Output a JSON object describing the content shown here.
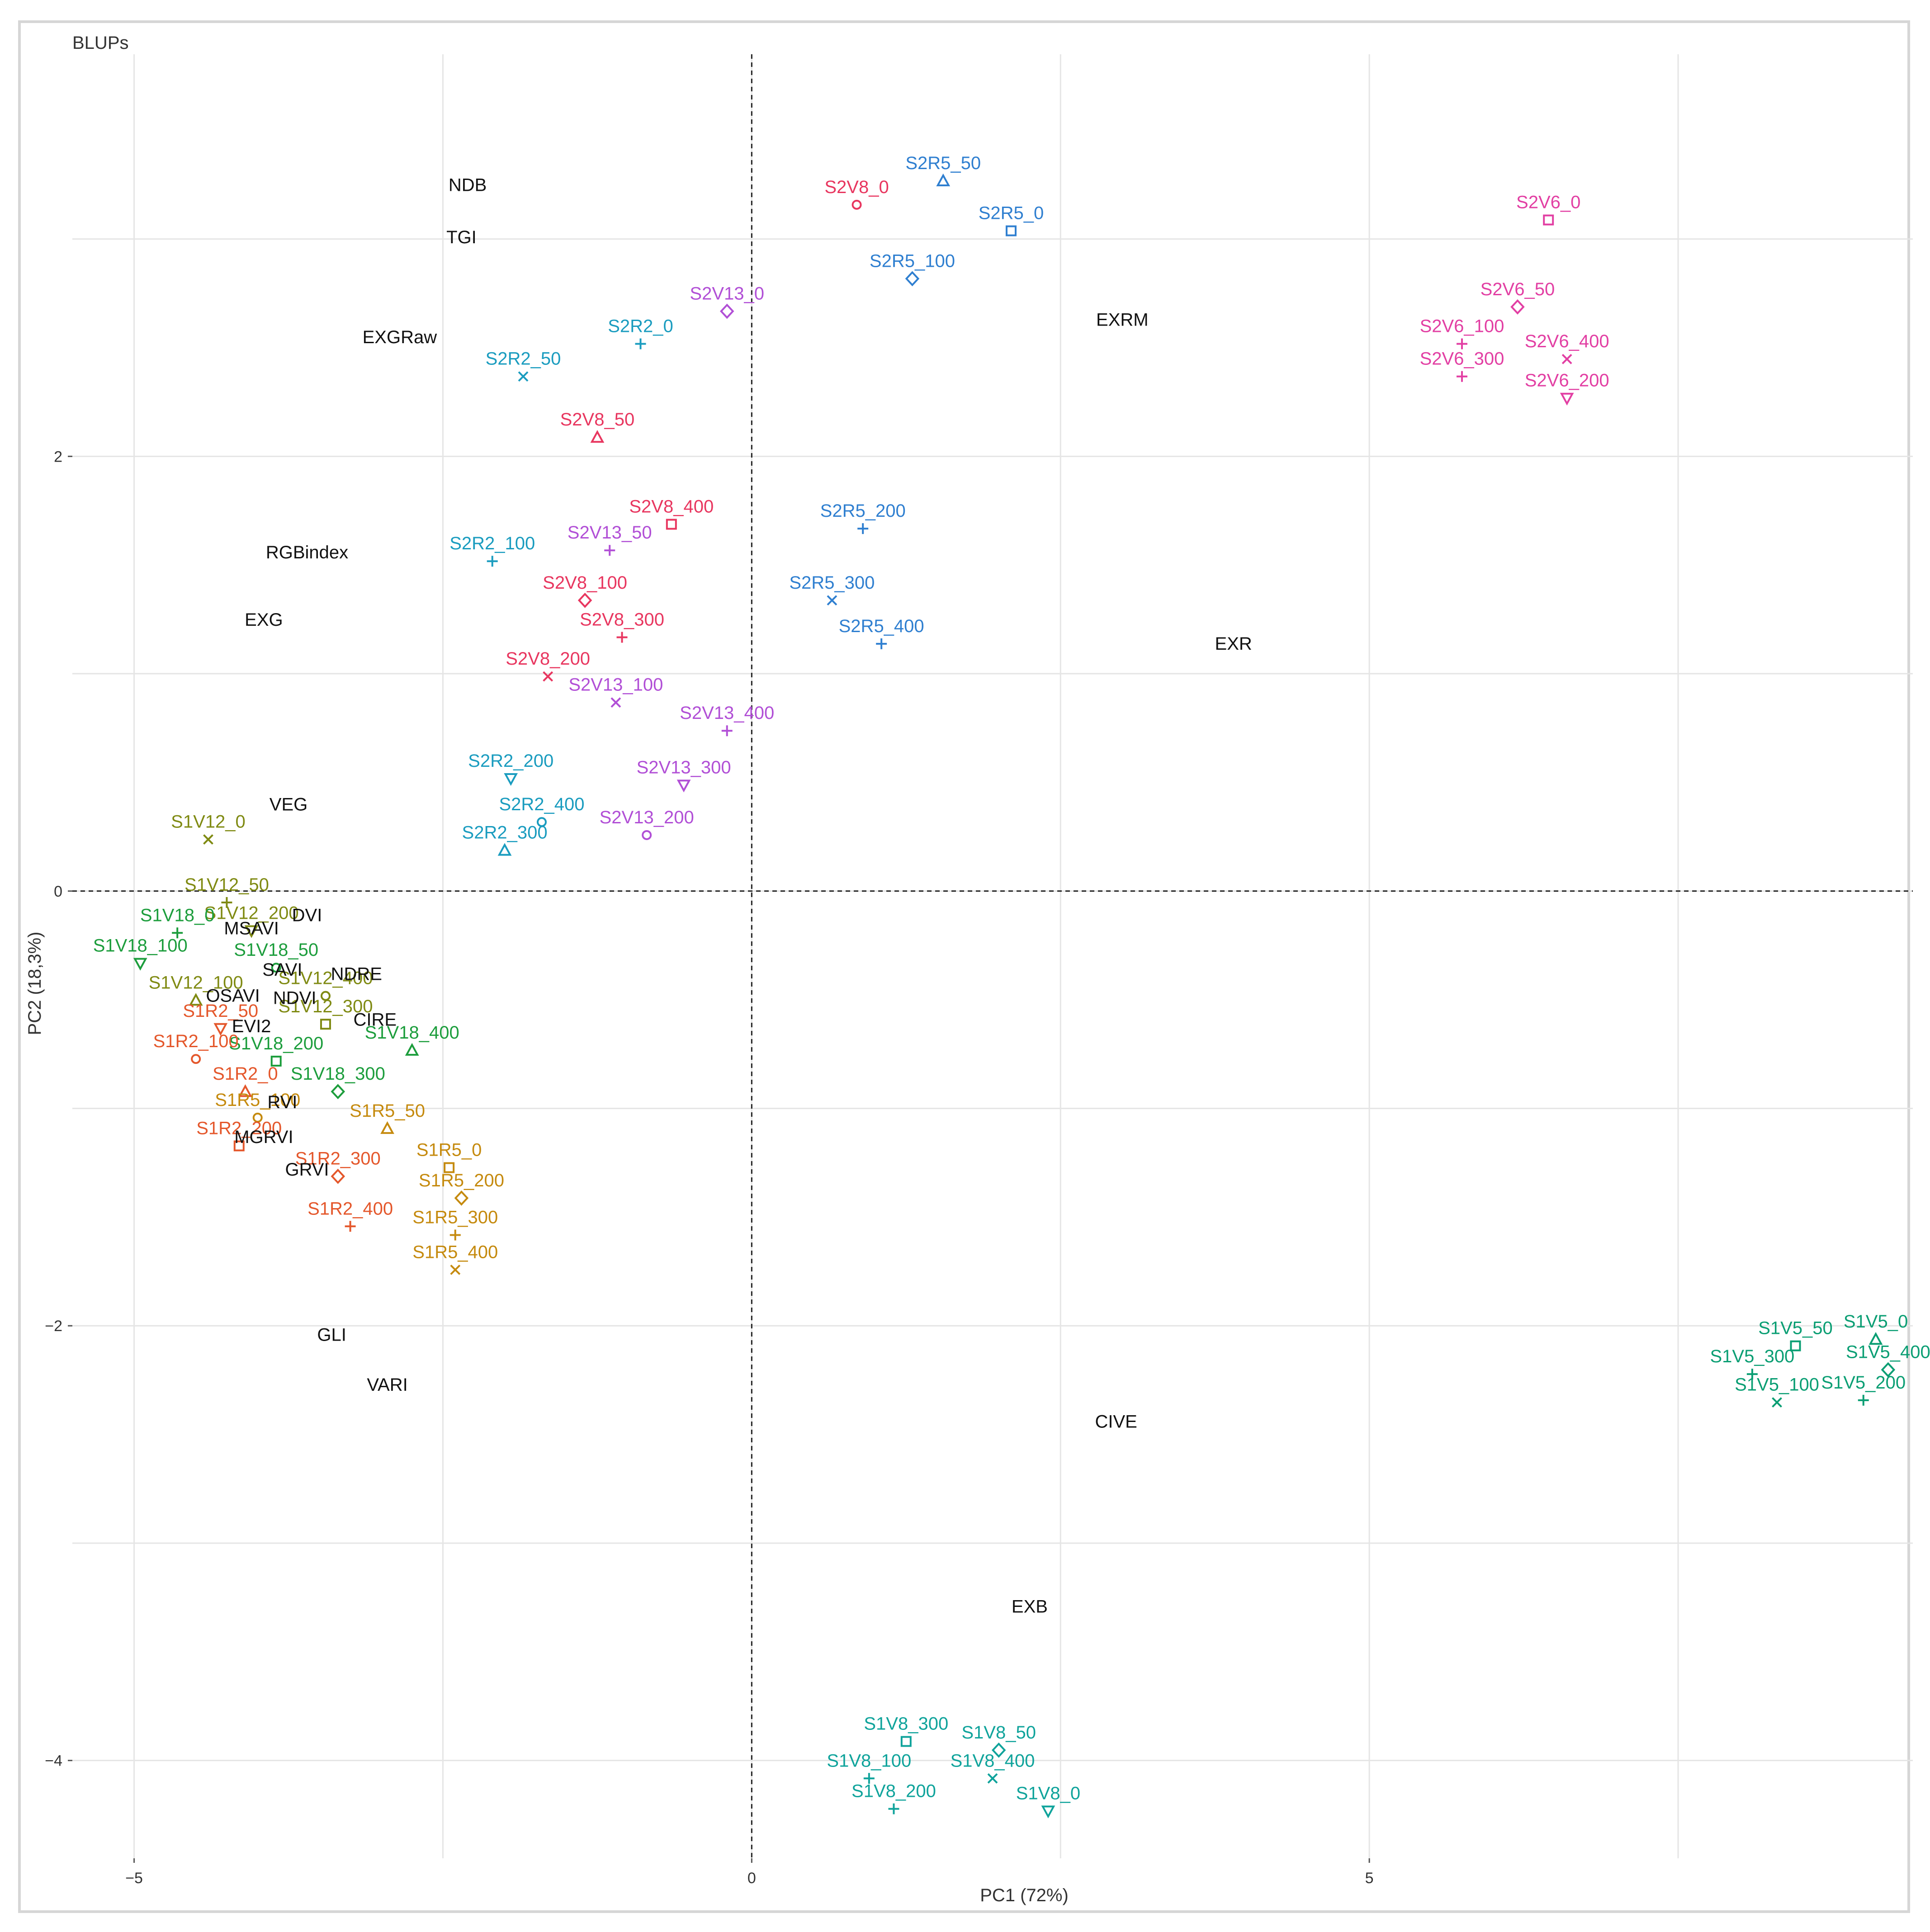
{
  "chart_data": {
    "type": "scatter",
    "title": "BLUPs",
    "xlabel": "PC1 (72%)",
    "ylabel": "PC2 (18,3%)",
    "xlim": [
      -5.5,
      9.4
    ],
    "ylim": [
      -4.45,
      3.85
    ],
    "xticks": [
      -5,
      0,
      5
    ],
    "xtick_labels": [
      "−5",
      "0",
      "5"
    ],
    "yticks": [
      2,
      0,
      -2,
      -4
    ],
    "ytick_labels": [
      "2",
      "0",
      "−2",
      "−4"
    ],
    "grid": true,
    "legend": "none",
    "reference_lines": {
      "x": 0,
      "y": 0
    },
    "colors": {
      "S2V8": "#e8365f",
      "S2R5": "#2f7fd0",
      "S2R5_a": "#7b68d8",
      "S2V6": "#e23fa3",
      "S2V13": "#b14fd6",
      "S2R2": "#1a9cbf",
      "S1V12": "#7f8a12",
      "S1V18": "#1c9d3c",
      "S1R2": "#e4572b",
      "S1R5": "#c58a0e",
      "S1V5": "#0a9e73",
      "S1V8": "#0fa39b",
      "variable": "#111111"
    },
    "series": [
      {
        "group": "S2V8",
        "color": "#e8365f",
        "points": [
          {
            "label": "S2V8_0",
            "x": 0.85,
            "y": 3.22
          },
          {
            "label": "S2V8_50",
            "x": -1.25,
            "y": 2.15
          },
          {
            "label": "S2V8_400",
            "x": -0.65,
            "y": 1.75
          },
          {
            "label": "S2V8_100",
            "x": -1.35,
            "y": 1.4
          },
          {
            "label": "S2V8_300",
            "x": -1.05,
            "y": 1.23
          },
          {
            "label": "S2V8_200",
            "x": -1.65,
            "y": 1.05
          }
        ]
      },
      {
        "group": "S2R5",
        "color": "#2f7fd0",
        "points": [
          {
            "label": "S2R5_50",
            "x": 1.55,
            "y": 3.33
          },
          {
            "label": "S2R5_0",
            "x": 2.1,
            "y": 3.1
          },
          {
            "label": "S2R5_100",
            "x": 1.3,
            "y": 2.88
          },
          {
            "label": "S2R5_200",
            "x": 0.9,
            "y": 1.73
          },
          {
            "label": "S2R5_300",
            "x": 0.65,
            "y": 1.4
          },
          {
            "label": "S2R5_400",
            "x": 1.05,
            "y": 1.2
          }
        ]
      },
      {
        "group": "S2V6",
        "color": "#e23fa3",
        "points": [
          {
            "label": "S2V6_0",
            "x": 6.45,
            "y": 3.15
          },
          {
            "label": "S2V6_50",
            "x": 6.2,
            "y": 2.75
          },
          {
            "label": "S2V6_100",
            "x": 5.75,
            "y": 2.58
          },
          {
            "label": "S2V6_400",
            "x": 6.6,
            "y": 2.51
          },
          {
            "label": "S2V6_300",
            "x": 5.75,
            "y": 2.43
          },
          {
            "label": "S2V6_200",
            "x": 6.6,
            "y": 2.33
          }
        ]
      },
      {
        "group": "S2V13",
        "color": "#b14fd6",
        "points": [
          {
            "label": "S2V13_0",
            "x": -0.2,
            "y": 2.73
          },
          {
            "label": "S2V13_50",
            "x": -1.15,
            "y": 1.63
          },
          {
            "label": "S2V13_100",
            "x": -1.1,
            "y": 0.93
          },
          {
            "label": "S2V13_400",
            "x": -0.2,
            "y": 0.8
          },
          {
            "label": "S2V13_300",
            "x": -0.55,
            "y": 0.55
          },
          {
            "label": "S2V13_200",
            "x": -0.85,
            "y": 0.32
          }
        ]
      },
      {
        "group": "S2R2",
        "color": "#1a9cbf",
        "points": [
          {
            "label": "S2R2_0",
            "x": -0.9,
            "y": 2.58
          },
          {
            "label": "S2R2_50",
            "x": -1.85,
            "y": 2.43
          },
          {
            "label": "S2R2_100",
            "x": -2.1,
            "y": 1.58
          },
          {
            "label": "S2R2_200",
            "x": -1.95,
            "y": 0.58
          },
          {
            "label": "S2R2_400",
            "x": -1.7,
            "y": 0.38
          },
          {
            "label": "S2R2_300",
            "x": -2.0,
            "y": 0.25
          }
        ]
      },
      {
        "group": "S1V12",
        "color": "#7f8a12",
        "points": [
          {
            "label": "S1V12_0",
            "x": -4.4,
            "y": 0.3
          },
          {
            "label": "S1V12_50",
            "x": -4.25,
            "y": 0.01
          },
          {
            "label": "S1V12_200",
            "x": -4.05,
            "y": -0.12
          },
          {
            "label": "S1V12_400",
            "x": -3.45,
            "y": -0.42
          },
          {
            "label": "S1V12_100",
            "x": -4.5,
            "y": -0.44
          },
          {
            "label": "S1V12_300",
            "x": -3.45,
            "y": -0.55
          }
        ]
      },
      {
        "group": "S1V18",
        "color": "#1c9d3c",
        "points": [
          {
            "label": "S1V18_0",
            "x": -4.65,
            "y": -0.13
          },
          {
            "label": "S1V18_100",
            "x": -4.95,
            "y": -0.27
          },
          {
            "label": "S1V18_50",
            "x": -3.85,
            "y": -0.29
          },
          {
            "label": "S1V18_400",
            "x": -2.75,
            "y": -0.67
          },
          {
            "label": "S1V18_200",
            "x": -3.85,
            "y": -0.72
          },
          {
            "label": "S1V18_300",
            "x": -3.35,
            "y": -0.86
          }
        ]
      },
      {
        "group": "S1R2",
        "color": "#e4572b",
        "points": [
          {
            "label": "S1R2_50",
            "x": -4.3,
            "y": -0.57
          },
          {
            "label": "S1R2_100",
            "x": -4.5,
            "y": -0.71
          },
          {
            "label": "S1R2_0",
            "x": -4.1,
            "y": -0.86
          },
          {
            "label": "S1R2_200",
            "x": -4.15,
            "y": -1.11
          },
          {
            "label": "S1R2_300",
            "x": -3.35,
            "y": -1.25
          },
          {
            "label": "S1R2_400",
            "x": -3.25,
            "y": -1.48
          }
        ]
      },
      {
        "group": "S1R5",
        "color": "#c58a0e",
        "points": [
          {
            "label": "S1R5_100",
            "x": -4.0,
            "y": -0.98
          },
          {
            "label": "S1R5_50",
            "x": -2.95,
            "y": -1.03
          },
          {
            "label": "S1R5_0",
            "x": -2.45,
            "y": -1.21
          },
          {
            "label": "S1R5_200",
            "x": -2.35,
            "y": -1.35
          },
          {
            "label": "S1R5_300",
            "x": -2.4,
            "y": -1.52
          },
          {
            "label": "S1R5_400",
            "x": -2.4,
            "y": -1.68
          }
        ]
      },
      {
        "group": "S1V5",
        "color": "#0a9e73",
        "points": [
          {
            "label": "S1V5_0",
            "x": 9.1,
            "y": -2.0
          },
          {
            "label": "S1V5_50",
            "x": 8.45,
            "y": -2.03
          },
          {
            "label": "S1V5_400",
            "x": 9.2,
            "y": -2.14
          },
          {
            "label": "S1V5_300",
            "x": 8.1,
            "y": -2.16
          },
          {
            "label": "S1V5_100",
            "x": 8.3,
            "y": -2.29
          },
          {
            "label": "S1V5_200",
            "x": 9.0,
            "y": -2.28
          }
        ]
      },
      {
        "group": "S1V8",
        "color": "#0fa39b",
        "points": [
          {
            "label": "S1V8_300",
            "x": 1.25,
            "y": -3.85
          },
          {
            "label": "S1V8_50",
            "x": 2.0,
            "y": -3.89
          },
          {
            "label": "S1V8_100",
            "x": 0.95,
            "y": -4.02
          },
          {
            "label": "S1V8_400",
            "x": 1.95,
            "y": -4.02
          },
          {
            "label": "S1V8_200",
            "x": 1.15,
            "y": -4.16
          },
          {
            "label": "S1V8_0",
            "x": 2.4,
            "y": -4.17
          }
        ]
      }
    ],
    "variables": [
      {
        "label": "NDB",
        "x": -2.3,
        "y": 3.25
      },
      {
        "label": "TGI",
        "x": -2.35,
        "y": 3.01
      },
      {
        "label": "EXGRaw",
        "x": -2.85,
        "y": 2.55
      },
      {
        "label": "RGBindex",
        "x": -3.6,
        "y": 1.56
      },
      {
        "label": "EXG",
        "x": -3.95,
        "y": 1.25
      },
      {
        "label": "VEG",
        "x": -3.75,
        "y": 0.4
      },
      {
        "label": "DVI",
        "x": -3.6,
        "y": -0.11
      },
      {
        "label": "MSAVI",
        "x": -4.05,
        "y": -0.17
      },
      {
        "label": "SAVI",
        "x": -3.8,
        "y": -0.36
      },
      {
        "label": "NDRE",
        "x": -3.2,
        "y": -0.38
      },
      {
        "label": "OSAVI",
        "x": -4.2,
        "y": -0.48
      },
      {
        "label": "NDVI",
        "x": -3.7,
        "y": -0.49
      },
      {
        "label": "CIRE",
        "x": -3.05,
        "y": -0.59
      },
      {
        "label": "EVI2",
        "x": -4.05,
        "y": -0.62
      },
      {
        "label": "RVI",
        "x": -3.8,
        "y": -0.97
      },
      {
        "label": "MGRVI",
        "x": -3.95,
        "y": -1.13
      },
      {
        "label": "GRVI",
        "x": -3.6,
        "y": -1.28
      },
      {
        "label": "GLI",
        "x": -3.4,
        "y": -2.04
      },
      {
        "label": "VARI",
        "x": -2.95,
        "y": -2.27
      },
      {
        "label": "EXRM",
        "x": 3.0,
        "y": 2.63
      },
      {
        "label": "EXR",
        "x": 3.9,
        "y": 1.14
      },
      {
        "label": "CIVE",
        "x": 2.95,
        "y": -2.44
      },
      {
        "label": "EXB",
        "x": 2.25,
        "y": -3.29
      }
    ]
  }
}
